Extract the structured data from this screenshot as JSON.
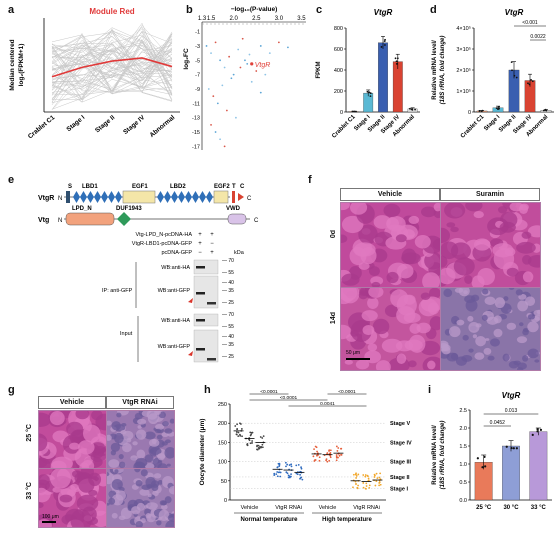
{
  "panels": {
    "a": {
      "label": "a",
      "title": "Module Red",
      "ylabel": "Median centered\nlog₂(FPKM+1)",
      "categories": [
        "Crablet C1",
        "Stage I",
        "Stage II",
        "Stage IV",
        "Abnormal"
      ],
      "accent": "#e03a3a"
    },
    "b": {
      "label": "b",
      "xlabel": "−log₁₀(P-value)",
      "ylabel": "log₂FC",
      "xticks": [
        "1.3",
        "1.5",
        "2.0",
        "2.5",
        "3.0",
        "3.5"
      ],
      "yticks": [
        "-1",
        "-3",
        "-5",
        "-7",
        "-9",
        "-11",
        "-13",
        "-15",
        "-17"
      ],
      "highlight": "VtgR"
    },
    "c": {
      "label": "c",
      "title": "VtgR",
      "ylabel": "FPKM",
      "yticks": [
        "0",
        "200",
        "400",
        "600",
        "800"
      ],
      "categories": [
        "Crablet C1",
        "Stage I",
        "Stage II",
        "Stage IV",
        "Abnormal"
      ]
    },
    "d": {
      "label": "d",
      "title": "VtgR",
      "ylabel": "Relative mRNA level/\n(18S rRNA, fold change)",
      "yticks": [
        "0",
        "1×10⁵",
        "2×10⁵",
        "3×10⁵",
        "4×10⁵"
      ],
      "categories": [
        "Crablet C1",
        "Stage I",
        "Stage II",
        "Stage IV",
        "Abnormal"
      ],
      "pvalues": [
        "<0.001",
        "0.0022"
      ]
    },
    "e": {
      "label": "e",
      "vtgr_name": "VtgR",
      "vtg_name": "Vtg",
      "domains_vtgr": [
        "S",
        "LBD1",
        "EGF1",
        "LBD2",
        "EGF2",
        "T",
        "C"
      ],
      "domains_vtg": [
        "LPD_N",
        "DUF1943",
        "VWD"
      ],
      "n_term": "N",
      "c_term": "C",
      "constructs": [
        "Vtg-LPD_N-pcDNA-HA",
        "VtgR-LBD1-pcDNA-GFP",
        "pcDNA-GFP"
      ],
      "signs": [
        [
          "+",
          "+"
        ],
        [
          "+",
          "−"
        ],
        [
          "−",
          "+"
        ]
      ],
      "kda": "kDa",
      "ip_label": "IP: anti-GFP",
      "input_label": "Input",
      "wb": [
        "WB:anti-HA",
        "WB:anti-GFP",
        "WB:anti-HA",
        "WB:anti-GFP"
      ],
      "markers_ip": [
        "70",
        "55",
        "40",
        "35",
        "25"
      ],
      "markers_in": [
        "70",
        "55",
        "40",
        "35",
        "25"
      ]
    },
    "f": {
      "label": "f",
      "cols": [
        "Vehicle",
        "Suramin"
      ],
      "rows": [
        "0d",
        "14d"
      ],
      "scale": "50 μm"
    },
    "g": {
      "label": "g",
      "cols": [
        "Vehicle",
        "VtgR RNAi"
      ],
      "rows": [
        "25 °C",
        "33 °C"
      ],
      "scale": "100 μm"
    },
    "h": {
      "label": "h",
      "ylabel": "Oocyte diameter (μm)",
      "yticks": [
        "0",
        "50",
        "100",
        "150",
        "200",
        "250"
      ],
      "groups": [
        "Vehicle",
        "VtgR RNAi",
        "Vehicle",
        "VtgR RNAi"
      ],
      "conditions": [
        "Normal temperature",
        "High temperature"
      ],
      "stages": [
        "Stage V",
        "Stage IV",
        "Stage III",
        "Stage II",
        "Stage I"
      ],
      "pvalues": [
        "<0.0001",
        "<0.0001",
        "<0.0001",
        "0.0041"
      ]
    },
    "i": {
      "label": "i",
      "title": "VtgR",
      "ylabel": "Relative mRNA level/\n(18S rRNA, fold change)",
      "yticks": [
        "0.0",
        "0.5",
        "1.0",
        "1.5",
        "2.0",
        "2.5"
      ],
      "categories": [
        "25 °C",
        "30 °C",
        "33 °C"
      ],
      "pvalues": [
        "0.0452",
        "0.013"
      ]
    }
  },
  "chart_data": [
    {
      "type": "line",
      "panel": "a",
      "categories": [
        "Crablet C1",
        "Stage I",
        "Stage II",
        "Stage IV",
        "Abnormal"
      ],
      "series": [
        {
          "values": [
            -1.5,
            -0.3,
            0.5,
            0.9,
            -0.2
          ]
        }
      ],
      "ylim": [
        -6,
        6
      ]
    },
    {
      "type": "scatter",
      "panel": "b",
      "x": [
        1.4,
        1.5,
        1.6,
        1.7,
        1.8,
        1.9,
        2.0,
        2.1,
        2.2,
        2.3,
        2.4,
        2.5,
        2.6,
        2.8,
        3.0,
        3.2,
        1.45,
        1.55,
        1.65,
        1.75,
        1.85,
        1.95,
        2.05,
        2.15,
        2.25,
        2.35,
        1.5,
        1.6,
        1.7,
        1.8,
        2.6,
        2.7
      ],
      "y": [
        -3,
        -4,
        -2.5,
        -5,
        -6,
        -4.5,
        -7,
        -3.5,
        -2,
        -5.5,
        -8,
        -6.5,
        -3,
        -4,
        -2.5,
        -3.2,
        -9,
        -10,
        -11,
        -8.5,
        -12,
        -7.5,
        -13,
        -6,
        -5,
        -4.2,
        -14,
        -15,
        -16,
        -17,
        -9.5,
        -7
      ],
      "xlim": [
        1.3,
        3.6
      ],
      "ylim": [
        -17.5,
        -0.5
      ],
      "highlight_point": {
        "x": 2.4,
        "y": -5.5
      }
    },
    {
      "type": "bar",
      "panel": "c",
      "categories": [
        "Crablet C1",
        "Stage I",
        "Stage II",
        "Stage IV",
        "Abnormal"
      ],
      "values": [
        5,
        180,
        660,
        480,
        30
      ],
      "errors": [
        3,
        30,
        60,
        70,
        10
      ],
      "colors": [
        "#f2a27d",
        "#5ab9d4",
        "#3a5fb0",
        "#d94332",
        "#dddddd"
      ],
      "ylim": [
        0,
        800
      ]
    },
    {
      "type": "bar",
      "panel": "d",
      "categories": [
        "Crablet C1",
        "Stage I",
        "Stage II",
        "Stage IV",
        "Abnormal"
      ],
      "values": [
        5000,
        20000,
        200000,
        150000,
        8000
      ],
      "errors": [
        2000,
        8000,
        40000,
        30000,
        3000
      ],
      "colors": [
        "#f2a27d",
        "#5ab9d4",
        "#3a5fb0",
        "#d94332",
        "#dddddd"
      ],
      "ylim": [
        0,
        400000
      ]
    },
    {
      "type": "scatter",
      "panel": "h",
      "groups": [
        "NT-Vehicle",
        "NT-VtgR RNAi",
        "HT-Vehicle",
        "HT-VtgR RNAi"
      ],
      "stage_means": [
        [
          180,
          160,
          150
        ],
        [
          80,
          78,
          72
        ],
        [
          120,
          118,
          122
        ],
        [
          50,
          48,
          52
        ]
      ],
      "colors": [
        "#444444",
        "#2f6bbf",
        "#e65f3b",
        "#f2a72a"
      ],
      "ylim": [
        0,
        250
      ]
    },
    {
      "type": "bar",
      "panel": "i",
      "categories": [
        "25 °C",
        "30 °C",
        "33 °C"
      ],
      "values": [
        1.05,
        1.5,
        1.9
      ],
      "errors": [
        0.2,
        0.15,
        0.1
      ],
      "colors": [
        "#e97a5a",
        "#8e9ed6",
        "#b899d9"
      ],
      "ylim": [
        0,
        2.5
      ]
    }
  ]
}
